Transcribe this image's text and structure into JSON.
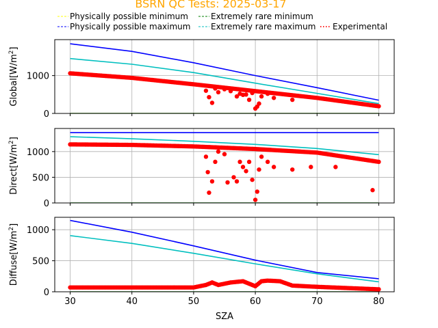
{
  "chart_data": {
    "type": "line",
    "title": "BSRN QC Tests: 2025-03-17",
    "xlabel": "SZA",
    "xlim": [
      27.5,
      82.5
    ],
    "xticks": [
      30,
      40,
      50,
      60,
      70,
      80
    ],
    "grid": true,
    "legend_placement": "top",
    "legend": [
      {
        "label": "Physically possible minimum",
        "color": "#ffff00",
        "style": "dashed"
      },
      {
        "label": "Extremely rare minimum",
        "color": "#008000",
        "style": "dashed"
      },
      {
        "label": "Physically possible maximum",
        "color": "#0000ff",
        "style": "dashed"
      },
      {
        "label": "Extremely rare maximum",
        "color": "#00bfbf",
        "style": "dashed"
      },
      {
        "label": "Experimental",
        "color": "#ff0000",
        "style": "dotted"
      }
    ],
    "panels": [
      {
        "id": "global",
        "ylabel_main": "Global[W/m",
        "ylabel_sup": "2",
        "ylabel_end": "]",
        "ylim": [
          0,
          1950
        ],
        "yticks": [
          0,
          1000
        ],
        "series": [
          {
            "name": "Physically possible minimum",
            "color": "#ffff00",
            "x": [
              30,
              80
            ],
            "y": [
              -4,
              -4
            ]
          },
          {
            "name": "Extremely rare minimum",
            "color": "#008000",
            "x": [
              30,
              80
            ],
            "y": [
              -2,
              -2
            ]
          },
          {
            "name": "Physically possible maximum",
            "color": "#0000ff",
            "x": [
              30,
              40,
              50,
              60,
              70,
              80
            ],
            "y": [
              1840,
              1640,
              1340,
              1000,
              680,
              350
            ]
          },
          {
            "name": "Extremely rare maximum",
            "color": "#00bfbf",
            "x": [
              30,
              40,
              50,
              60,
              70,
              80
            ],
            "y": [
              1450,
              1300,
              1080,
              800,
              530,
              260
            ]
          },
          {
            "name": "Experimental",
            "color": "#ff0000",
            "markers": true,
            "x": [
              30,
              40,
              50,
              60,
              70,
              80
            ],
            "y": [
              1060,
              940,
              770,
              590,
              410,
              190
            ]
          }
        ],
        "scatter": [
          [
            52,
            600
          ],
          [
            52.5,
            430
          ],
          [
            53,
            280
          ],
          [
            53.5,
            660
          ],
          [
            54,
            560
          ],
          [
            55,
            640
          ],
          [
            56,
            590
          ],
          [
            57,
            450
          ],
          [
            57.5,
            520
          ],
          [
            58,
            490
          ],
          [
            58.5,
            500
          ],
          [
            59,
            360
          ],
          [
            59.5,
            540
          ],
          [
            60,
            130
          ],
          [
            60.3,
            180
          ],
          [
            60.6,
            260
          ],
          [
            61,
            450
          ],
          [
            62,
            520
          ],
          [
            63,
            410
          ],
          [
            66,
            360
          ]
        ],
        "experimental_range": [
          30,
          80
        ]
      },
      {
        "id": "direct",
        "ylabel_main": "Direct[W/m",
        "ylabel_sup": "2",
        "ylabel_end": "]",
        "ylim": [
          0,
          1450
        ],
        "yticks": [
          0,
          500,
          1000
        ],
        "series": [
          {
            "name": "Physically possible minimum",
            "color": "#ffff00",
            "x": [
              30,
              80
            ],
            "y": [
              -5,
              -5
            ]
          },
          {
            "name": "Extremely rare minimum",
            "color": "#008000",
            "x": [
              30,
              80
            ],
            "y": [
              0,
              0
            ]
          },
          {
            "name": "Physically possible maximum",
            "color": "#0000ff",
            "x": [
              30,
              80
            ],
            "y": [
              1370,
              1370
            ]
          },
          {
            "name": "Extremely rare maximum",
            "color": "#00bfbf",
            "x": [
              30,
              40,
              50,
              60,
              70,
              80
            ],
            "y": [
              1290,
              1250,
              1200,
              1140,
              1060,
              940
            ]
          },
          {
            "name": "Experimental",
            "color": "#ff0000",
            "markers": true,
            "x": [
              30,
              40,
              50,
              60,
              70,
              80
            ],
            "y": [
              1140,
              1130,
              1100,
              1050,
              980,
              800
            ]
          }
        ],
        "scatter": [
          [
            52,
            900
          ],
          [
            52.3,
            600
          ],
          [
            52.5,
            200
          ],
          [
            53,
            420
          ],
          [
            53.5,
            800
          ],
          [
            54,
            1000
          ],
          [
            55,
            950
          ],
          [
            55.5,
            400
          ],
          [
            56.5,
            500
          ],
          [
            57,
            420
          ],
          [
            57.5,
            800
          ],
          [
            58,
            700
          ],
          [
            58.5,
            620
          ],
          [
            59,
            800
          ],
          [
            59.5,
            450
          ],
          [
            60,
            60
          ],
          [
            60.3,
            220
          ],
          [
            60.6,
            650
          ],
          [
            61,
            900
          ],
          [
            62,
            800
          ],
          [
            63,
            700
          ],
          [
            66,
            650
          ],
          [
            69,
            700
          ],
          [
            73,
            700
          ],
          [
            79,
            250
          ]
        ],
        "experimental_range": [
          30,
          80
        ]
      },
      {
        "id": "diffuse",
        "ylabel_main": "Diffuse[W/m",
        "ylabel_sup": "2",
        "ylabel_end": "]",
        "ylim": [
          0,
          1200
        ],
        "yticks": [
          0,
          500,
          1000
        ],
        "series": [
          {
            "name": "Physically possible minimum",
            "color": "#ffff00",
            "x": [
              30,
              80
            ],
            "y": [
              -3,
              -3
            ]
          },
          {
            "name": "Extremely rare minimum",
            "color": "#008000",
            "x": [
              30,
              80
            ],
            "y": [
              0,
              0
            ]
          },
          {
            "name": "Physically possible maximum",
            "color": "#0000ff",
            "x": [
              30,
              40,
              50,
              60,
              70,
              80
            ],
            "y": [
              1150,
              960,
              740,
              510,
              310,
              210
            ]
          },
          {
            "name": "Extremely rare maximum",
            "color": "#00bfbf",
            "x": [
              30,
              40,
              50,
              60,
              70,
              80
            ],
            "y": [
              905,
              780,
              620,
              450,
              290,
              160
            ]
          },
          {
            "name": "Experimental",
            "color": "#ff0000",
            "markers": true,
            "x": [
              30,
              40,
              50,
              52,
              53,
              54,
              56,
              58,
              60,
              61,
              62,
              64,
              66,
              70,
              75,
              80
            ],
            "y": [
              70,
              70,
              70,
              110,
              150,
              110,
              150,
              170,
              90,
              170,
              180,
              170,
              100,
              80,
              60,
              40
            ]
          }
        ],
        "scatter": [],
        "experimental_range": [
          30,
          80
        ]
      }
    ]
  }
}
